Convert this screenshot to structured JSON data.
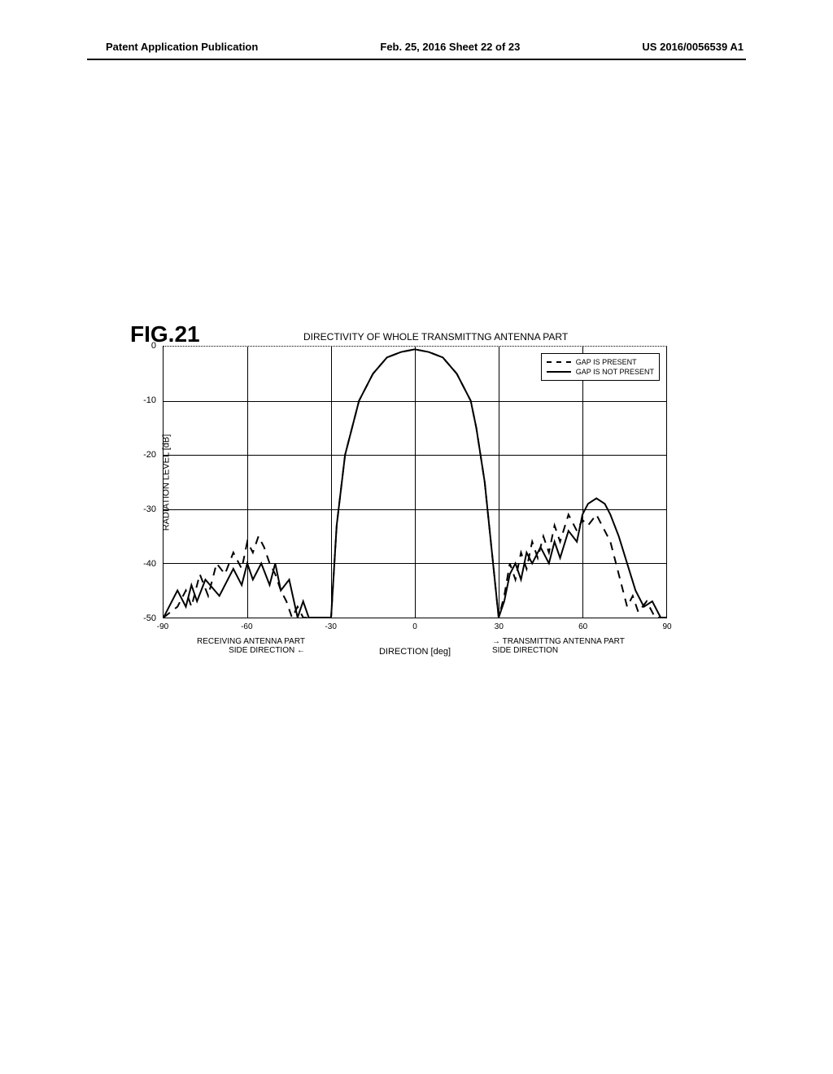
{
  "header": {
    "left": "Patent Application Publication",
    "center": "Feb. 25, 2016  Sheet 22 of 23",
    "right": "US 2016/0056539 A1"
  },
  "fig_label": "FIG.21",
  "chart": {
    "type": "line",
    "title": "DIRECTIVITY OF WHOLE TRANSMITTNG ANTENNA PART",
    "ylabel": "RADIATION LEVEL [dB]",
    "xlabel": "DIRECTION [deg]",
    "x_sublabel_left_line1": "RECEIVING ANTENNA PART",
    "x_sublabel_left_line2": "SIDE DIRECTION",
    "x_sublabel_right_line1": "TRANSMITTNG ANTENNA PART",
    "x_sublabel_right_line2": "SIDE DIRECTION",
    "arrow_left": "←",
    "arrow_right": "→",
    "xlim": [
      -90,
      90
    ],
    "ylim": [
      -50,
      0
    ],
    "x_ticks": [
      -90,
      -60,
      -30,
      0,
      30,
      60,
      90
    ],
    "y_ticks": [
      0,
      -10,
      -20,
      -30,
      -40,
      -50
    ],
    "legend": {
      "items": [
        {
          "label": "GAP IS PRESENT",
          "style": "dashed"
        },
        {
          "label": "GAP IS NOT PRESENT",
          "style": "solid"
        }
      ]
    },
    "grid_color": "#000000",
    "background_color": "#ffffff",
    "line_color_solid": "#000000",
    "line_color_dashed": "#000000",
    "line_width": 2,
    "series_solid": {
      "x": [
        -90,
        -85,
        -82,
        -80,
        -78,
        -75,
        -70,
        -65,
        -62,
        -60,
        -58,
        -55,
        -52,
        -50,
        -48,
        -45,
        -42,
        -40,
        -38,
        -35,
        -32,
        -30,
        -28,
        -25,
        -20,
        -15,
        -10,
        -5,
        0,
        5,
        10,
        15,
        20,
        22,
        25,
        28,
        30,
        32,
        34,
        36,
        38,
        40,
        42,
        45,
        48,
        50,
        52,
        55,
        58,
        60,
        62,
        65,
        68,
        70,
        73,
        76,
        79,
        82,
        85,
        88,
        90
      ],
      "y": [
        -50,
        -45,
        -48,
        -44,
        -47,
        -43,
        -46,
        -41,
        -44,
        -40,
        -43,
        -40,
        -44,
        -40,
        -45,
        -43,
        -50,
        -47,
        -50,
        -50,
        -50,
        -50,
        -33,
        -20,
        -10,
        -5,
        -2,
        -1,
        -0.5,
        -1,
        -2,
        -5,
        -10,
        -15,
        -25,
        -40,
        -50,
        -47,
        -42,
        -40,
        -43,
        -38,
        -40,
        -37,
        -40,
        -36,
        -39,
        -34,
        -36,
        -31,
        -29,
        -28,
        -29,
        -31,
        -35,
        -40,
        -45,
        -48,
        -47,
        -50,
        -50
      ]
    },
    "series_dashed": {
      "x": [
        -90,
        -85,
        -82,
        -80,
        -77,
        -74,
        -71,
        -68,
        -65,
        -62,
        -60,
        -58,
        -56,
        -54,
        -52,
        -50,
        -48,
        -46,
        -44,
        -42,
        -40,
        -38,
        -35,
        -32,
        -30,
        -28,
        -25,
        -20,
        -15,
        -10,
        -5,
        0,
        5,
        10,
        15,
        20,
        22,
        25,
        28,
        30,
        32,
        34,
        36,
        38,
        40,
        42,
        44,
        46,
        48,
        50,
        52,
        55,
        58,
        60,
        62,
        65,
        68,
        70,
        72,
        74,
        76,
        78,
        80,
        83,
        86,
        90
      ],
      "y": [
        -50,
        -48,
        -45,
        -48,
        -42,
        -46,
        -40,
        -42,
        -38,
        -41,
        -36,
        -38,
        -35,
        -37,
        -40,
        -42,
        -45,
        -47,
        -50,
        -48,
        -50,
        -50,
        -50,
        -50,
        -50,
        -33,
        -20,
        -10,
        -5,
        -2,
        -1,
        -0.5,
        -1,
        -2,
        -5,
        -10,
        -15,
        -25,
        -40,
        -50,
        -46,
        -40,
        -43,
        -38,
        -41,
        -36,
        -39,
        -35,
        -38,
        -33,
        -36,
        -31,
        -34,
        -32,
        -33,
        -31,
        -34,
        -36,
        -40,
        -44,
        -48,
        -46,
        -49,
        -47,
        -50,
        -50
      ]
    }
  }
}
